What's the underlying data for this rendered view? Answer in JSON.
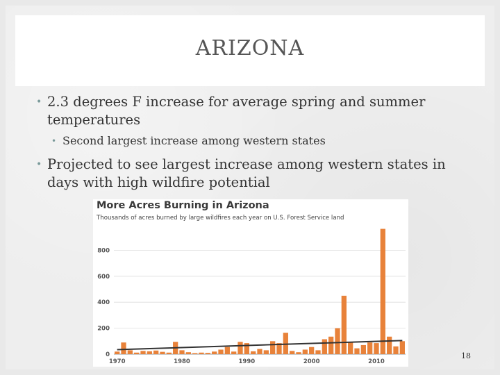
{
  "slide": {
    "title": "ARIZONA",
    "bullets": [
      "2.3 degrees F increase for average spring and summer temperatures",
      "Second largest increase among western states",
      "Projected to see largest increase among western states in days with high wildfire potential"
    ],
    "page_number": "18"
  },
  "chart_data": {
    "type": "bar",
    "title": "More Acres Burning in Arizona",
    "subtitle": "Thousands of acres burned by large wildfires each year on U.S. Forest Service land",
    "xlabel": "",
    "ylabel": "",
    "ylim": [
      0,
      1000
    ],
    "yticks": [
      "0",
      "200",
      "400",
      "600",
      "800"
    ],
    "xticks": [
      "1970",
      "1980",
      "1990",
      "2000",
      "2010"
    ],
    "grid": true,
    "bar_color": "#e8823a",
    "trend_color": "#333333",
    "x": [
      1970,
      1971,
      1972,
      1973,
      1974,
      1975,
      1976,
      1977,
      1978,
      1979,
      1980,
      1981,
      1982,
      1983,
      1984,
      1985,
      1986,
      1987,
      1988,
      1989,
      1990,
      1991,
      1992,
      1993,
      1994,
      1995,
      1996,
      1997,
      1998,
      1999,
      2000,
      2001,
      2002,
      2003,
      2004,
      2005,
      2006,
      2007,
      2008,
      2009,
      2010,
      2011,
      2012,
      2013,
      2014
    ],
    "values": [
      20,
      90,
      30,
      12,
      25,
      22,
      28,
      18,
      12,
      95,
      30,
      15,
      8,
      12,
      10,
      20,
      35,
      55,
      20,
      95,
      85,
      22,
      40,
      30,
      100,
      85,
      165,
      25,
      15,
      35,
      55,
      30,
      115,
      135,
      200,
      450,
      90,
      45,
      70,
      90,
      85,
      965,
      135,
      60,
      100
    ],
    "trend": {
      "start": [
        1970,
        35
      ],
      "end": [
        2014,
        105
      ]
    }
  }
}
